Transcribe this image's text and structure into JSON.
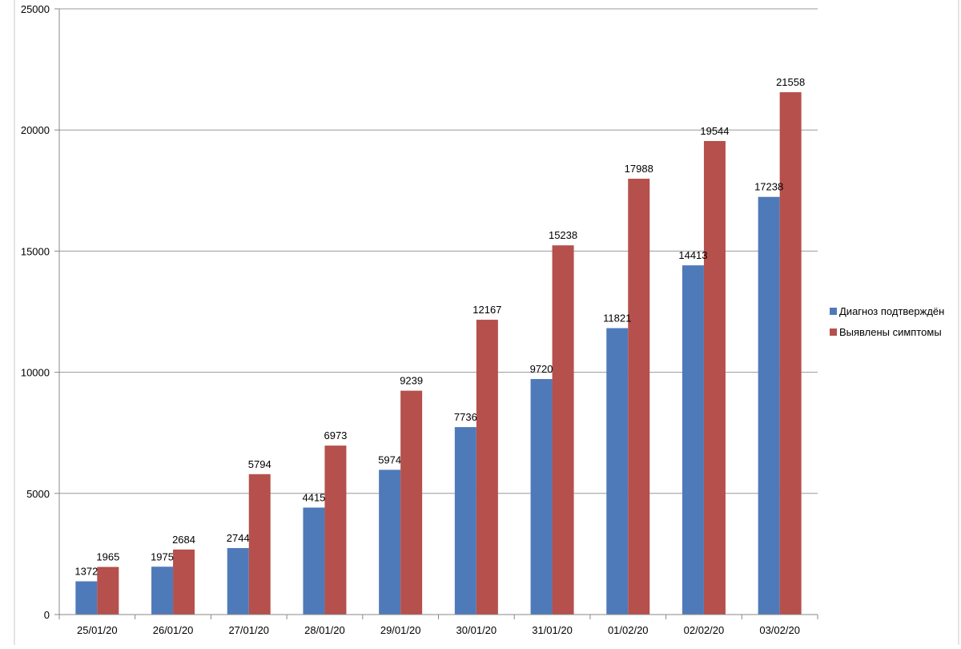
{
  "chart_data": {
    "type": "bar",
    "title": "",
    "xlabel": "",
    "ylabel": "",
    "ylim": [
      0,
      25000
    ],
    "yticks": [
      0,
      5000,
      10000,
      15000,
      20000,
      25000
    ],
    "grid": true,
    "legend_position": "right",
    "categories": [
      "25/01/20",
      "26/01/20",
      "27/01/20",
      "28/01/20",
      "29/01/20",
      "30/01/20",
      "31/01/20",
      "01/02/20",
      "02/02/20",
      "03/02/20"
    ],
    "series": [
      {
        "name": "Диагноз подтверждён",
        "color": "#4f7ab9",
        "values": [
          1372,
          1975,
          2744,
          4415,
          5974,
          7736,
          9720,
          11821,
          14413,
          17238
        ]
      },
      {
        "name": "Выявлены симптомы",
        "color": "#b5504c",
        "values": [
          1965,
          2684,
          5794,
          6973,
          9239,
          12167,
          15238,
          17988,
          19544,
          21558
        ]
      }
    ]
  }
}
